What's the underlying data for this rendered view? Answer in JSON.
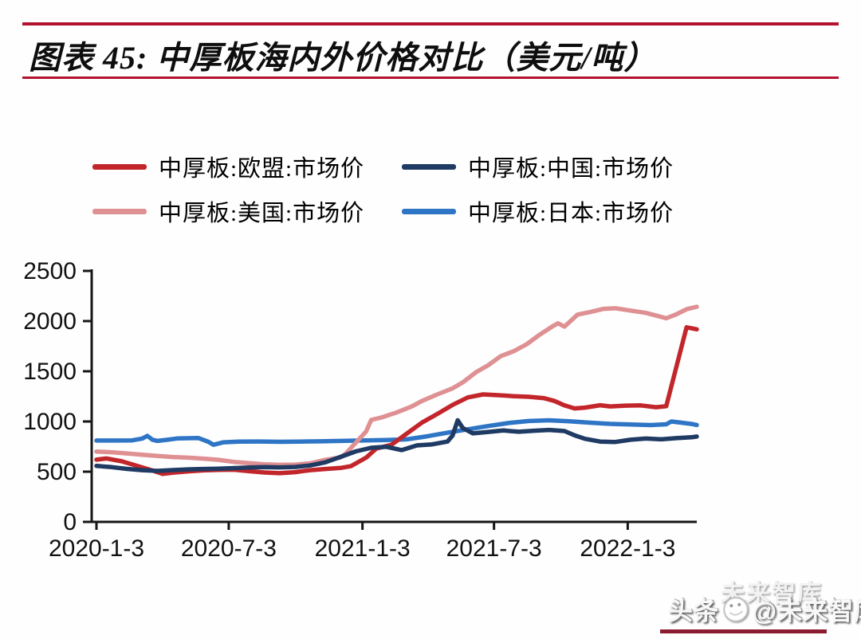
{
  "header": {
    "title": "图表 45: 中厚板海内外价格对比（美元/吨）",
    "rule_color": "#b4122d"
  },
  "legend": {
    "items": [
      {
        "label": "中厚板:欧盟:市场价",
        "color": "#c2262b"
      },
      {
        "label": "中厚板:中国:市场价",
        "color": "#1f3a63"
      },
      {
        "label": "中厚板:美国:市场价",
        "color": "#df9093"
      },
      {
        "label": "中厚板:日本:市场价",
        "color": "#2e75c6"
      }
    ]
  },
  "watermark": {
    "prefix": "头条",
    "handle": "@未来智库",
    "ghost": "未来智库",
    "underline_color": "#8c1c30"
  },
  "chart_data": {
    "type": "line",
    "figure_label": "图表 45",
    "title": "中厚板海内外价格对比（美元/吨）",
    "xlabel": "",
    "ylabel": "",
    "unit": "美元/吨",
    "grid": false,
    "legend_position": "top",
    "ylim": [
      0,
      2500
    ],
    "y_ticks": [
      0,
      500,
      1000,
      1500,
      2000,
      2500
    ],
    "x_range": [
      "2020-01-03",
      "2022-04-08"
    ],
    "x_tick_dates": [
      "2020-01-03",
      "2020-07-03",
      "2021-01-03",
      "2021-07-03",
      "2022-01-03"
    ],
    "x_tick_labels": [
      "2020-1-3",
      "2020-7-3",
      "2021-1-3",
      "2021-7-3",
      "2022-1-3"
    ],
    "series": [
      {
        "name": "中厚板:欧盟:市场价",
        "color": "#c2262b",
        "points": [
          [
            "2020-01-03",
            620
          ],
          [
            "2020-01-17",
            632
          ],
          [
            "2020-02-07",
            603
          ],
          [
            "2020-02-28",
            558
          ],
          [
            "2020-03-20",
            512
          ],
          [
            "2020-04-03",
            478
          ],
          [
            "2020-04-17",
            490
          ],
          [
            "2020-05-08",
            503
          ],
          [
            "2020-05-29",
            513
          ],
          [
            "2020-06-19",
            518
          ],
          [
            "2020-07-10",
            520
          ],
          [
            "2020-07-31",
            505
          ],
          [
            "2020-08-21",
            492
          ],
          [
            "2020-09-11",
            485
          ],
          [
            "2020-10-02",
            495
          ],
          [
            "2020-10-23",
            515
          ],
          [
            "2020-11-13",
            527
          ],
          [
            "2020-12-04",
            537
          ],
          [
            "2020-12-18",
            555
          ],
          [
            "2021-01-08",
            640
          ],
          [
            "2021-01-22",
            730
          ],
          [
            "2021-02-12",
            768
          ],
          [
            "2021-03-05",
            880
          ],
          [
            "2021-03-26",
            990
          ],
          [
            "2021-04-16",
            1075
          ],
          [
            "2021-05-07",
            1165
          ],
          [
            "2021-05-28",
            1240
          ],
          [
            "2021-06-18",
            1270
          ],
          [
            "2021-07-09",
            1262
          ],
          [
            "2021-07-30",
            1252
          ],
          [
            "2021-08-20",
            1246
          ],
          [
            "2021-09-10",
            1232
          ],
          [
            "2021-09-24",
            1205
          ],
          [
            "2021-10-08",
            1160
          ],
          [
            "2021-10-22",
            1130
          ],
          [
            "2021-11-05",
            1138
          ],
          [
            "2021-11-26",
            1162
          ],
          [
            "2021-12-10",
            1150
          ],
          [
            "2021-12-31",
            1158
          ],
          [
            "2022-01-21",
            1160
          ],
          [
            "2022-02-11",
            1142
          ],
          [
            "2022-02-25",
            1152
          ],
          [
            "2022-03-25",
            1938
          ],
          [
            "2022-04-08",
            1918
          ]
        ]
      },
      {
        "name": "中厚板:中国:市场价",
        "color": "#1f3a63",
        "points": [
          [
            "2020-01-03",
            558
          ],
          [
            "2020-01-24",
            545
          ],
          [
            "2020-02-14",
            528
          ],
          [
            "2020-03-06",
            515
          ],
          [
            "2020-03-27",
            508
          ],
          [
            "2020-04-17",
            516
          ],
          [
            "2020-05-08",
            523
          ],
          [
            "2020-05-29",
            527
          ],
          [
            "2020-06-19",
            530
          ],
          [
            "2020-07-10",
            536
          ],
          [
            "2020-07-31",
            541
          ],
          [
            "2020-08-21",
            546
          ],
          [
            "2020-09-11",
            543
          ],
          [
            "2020-10-02",
            547
          ],
          [
            "2020-10-23",
            562
          ],
          [
            "2020-11-13",
            594
          ],
          [
            "2020-12-04",
            648
          ],
          [
            "2020-12-25",
            702
          ],
          [
            "2021-01-15",
            738
          ],
          [
            "2021-02-05",
            748
          ],
          [
            "2021-02-26",
            715
          ],
          [
            "2021-03-19",
            762
          ],
          [
            "2021-04-09",
            772
          ],
          [
            "2021-04-30",
            800
          ],
          [
            "2021-05-07",
            860
          ],
          [
            "2021-05-14",
            1012
          ],
          [
            "2021-05-21",
            935
          ],
          [
            "2021-06-04",
            882
          ],
          [
            "2021-06-25",
            896
          ],
          [
            "2021-07-16",
            910
          ],
          [
            "2021-08-06",
            898
          ],
          [
            "2021-08-27",
            908
          ],
          [
            "2021-09-17",
            916
          ],
          [
            "2021-10-08",
            905
          ],
          [
            "2021-10-22",
            862
          ],
          [
            "2021-11-05",
            828
          ],
          [
            "2021-11-26",
            800
          ],
          [
            "2021-12-17",
            796
          ],
          [
            "2022-01-07",
            818
          ],
          [
            "2022-01-28",
            830
          ],
          [
            "2022-02-18",
            822
          ],
          [
            "2022-03-11",
            834
          ],
          [
            "2022-04-01",
            843
          ],
          [
            "2022-04-08",
            850
          ]
        ]
      },
      {
        "name": "中厚板:美国:市场价",
        "color": "#df9093",
        "points": [
          [
            "2020-01-03",
            700
          ],
          [
            "2020-01-24",
            694
          ],
          [
            "2020-02-14",
            682
          ],
          [
            "2020-03-06",
            668
          ],
          [
            "2020-03-27",
            656
          ],
          [
            "2020-04-17",
            646
          ],
          [
            "2020-05-08",
            640
          ],
          [
            "2020-05-29",
            630
          ],
          [
            "2020-06-19",
            618
          ],
          [
            "2020-07-10",
            598
          ],
          [
            "2020-07-31",
            585
          ],
          [
            "2020-08-21",
            574
          ],
          [
            "2020-09-11",
            568
          ],
          [
            "2020-10-02",
            571
          ],
          [
            "2020-10-23",
            583
          ],
          [
            "2020-11-13",
            618
          ],
          [
            "2020-12-04",
            642
          ],
          [
            "2020-12-11",
            680
          ],
          [
            "2020-12-25",
            790
          ],
          [
            "2021-01-08",
            900
          ],
          [
            "2021-01-15",
            1015
          ],
          [
            "2021-01-29",
            1040
          ],
          [
            "2021-02-19",
            1090
          ],
          [
            "2021-03-12",
            1150
          ],
          [
            "2021-03-26",
            1205
          ],
          [
            "2021-04-16",
            1270
          ],
          [
            "2021-05-07",
            1330
          ],
          [
            "2021-05-21",
            1390
          ],
          [
            "2021-06-08",
            1490
          ],
          [
            "2021-06-25",
            1560
          ],
          [
            "2021-07-12",
            1650
          ],
          [
            "2021-07-30",
            1700
          ],
          [
            "2021-08-17",
            1770
          ],
          [
            "2021-09-03",
            1860
          ],
          [
            "2021-09-22",
            1950
          ],
          [
            "2021-09-29",
            1978
          ],
          [
            "2021-10-08",
            1945
          ],
          [
            "2021-10-26",
            2065
          ],
          [
            "2021-11-12",
            2090
          ],
          [
            "2021-12-01",
            2122
          ],
          [
            "2021-12-17",
            2128
          ],
          [
            "2022-01-07",
            2105
          ],
          [
            "2022-01-28",
            2082
          ],
          [
            "2022-02-18",
            2042
          ],
          [
            "2022-02-25",
            2028
          ],
          [
            "2022-03-11",
            2068
          ],
          [
            "2022-03-25",
            2118
          ],
          [
            "2022-04-08",
            2143
          ]
        ]
      },
      {
        "name": "中厚板:日本:市场价",
        "color": "#2e75c6",
        "points": [
          [
            "2020-01-03",
            810
          ],
          [
            "2020-01-31",
            810
          ],
          [
            "2020-02-21",
            812
          ],
          [
            "2020-03-06",
            830
          ],
          [
            "2020-03-13",
            857
          ],
          [
            "2020-03-20",
            818
          ],
          [
            "2020-03-27",
            806
          ],
          [
            "2020-04-10",
            818
          ],
          [
            "2020-04-24",
            832
          ],
          [
            "2020-05-22",
            836
          ],
          [
            "2020-06-05",
            798
          ],
          [
            "2020-06-12",
            768
          ],
          [
            "2020-06-26",
            793
          ],
          [
            "2020-07-17",
            800
          ],
          [
            "2020-08-14",
            801
          ],
          [
            "2020-09-11",
            798
          ],
          [
            "2020-10-09",
            800
          ],
          [
            "2020-11-06",
            802
          ],
          [
            "2020-12-04",
            806
          ],
          [
            "2021-01-08",
            812
          ],
          [
            "2021-02-05",
            816
          ],
          [
            "2021-03-05",
            822
          ],
          [
            "2021-04-02",
            852
          ],
          [
            "2021-04-30",
            888
          ],
          [
            "2021-05-28",
            922
          ],
          [
            "2021-06-25",
            955
          ],
          [
            "2021-07-23",
            985
          ],
          [
            "2021-08-20",
            1005
          ],
          [
            "2021-09-17",
            1012
          ],
          [
            "2021-10-15",
            1002
          ],
          [
            "2021-11-12",
            988
          ],
          [
            "2021-12-10",
            976
          ],
          [
            "2022-01-07",
            970
          ],
          [
            "2022-02-04",
            964
          ],
          [
            "2022-02-25",
            972
          ],
          [
            "2022-03-04",
            1000
          ],
          [
            "2022-03-18",
            988
          ],
          [
            "2022-04-01",
            975
          ],
          [
            "2022-04-08",
            965
          ]
        ]
      }
    ]
  }
}
